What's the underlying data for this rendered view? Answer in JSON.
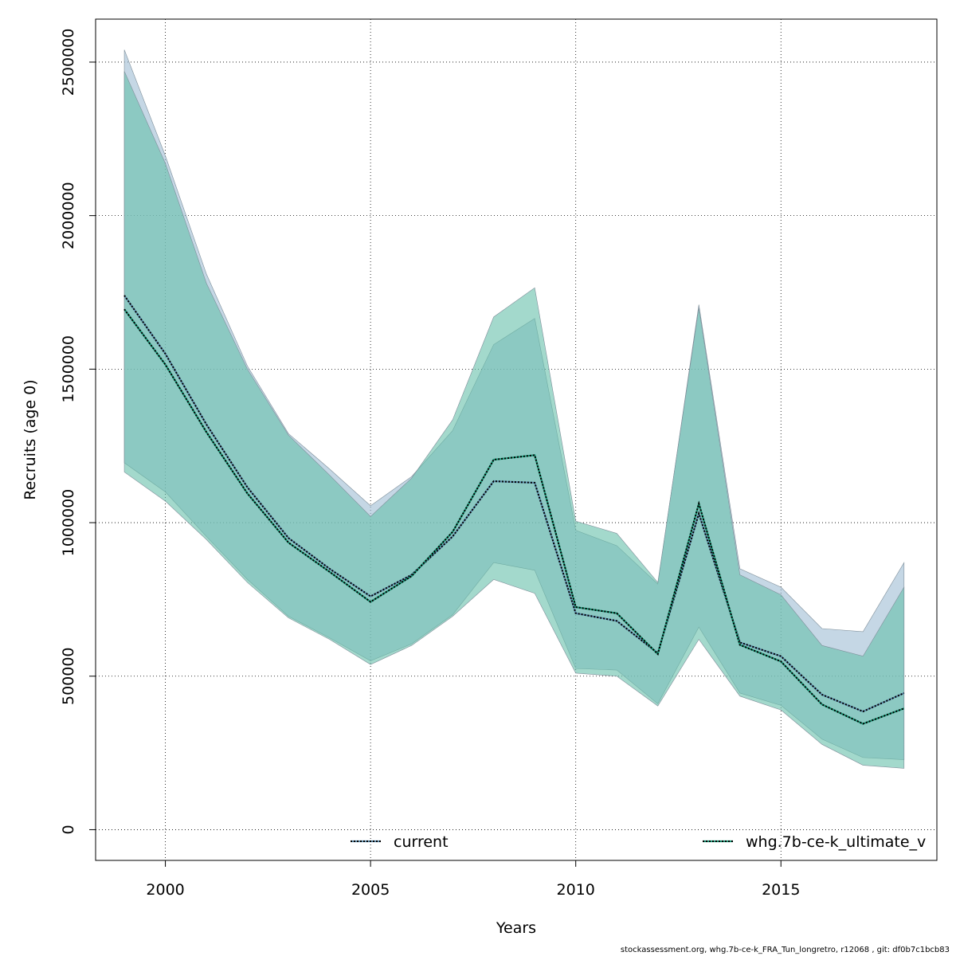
{
  "chart_data": {
    "type": "area",
    "xlabel": "Years",
    "ylabel": "Recruits (age 0)",
    "xlim": [
      1998.3,
      2018.8
    ],
    "ylim": [
      -100000,
      2640000
    ],
    "x_ticks": [
      2000,
      2005,
      2010,
      2015
    ],
    "y_ticks": [
      0,
      500000,
      1000000,
      1500000,
      2000000,
      2500000
    ],
    "grid": true,
    "legend_position": "bottom",
    "x": [
      1999,
      2000,
      2001,
      2002,
      2003,
      2004,
      2005,
      2006,
      2007,
      2008,
      2009,
      2010,
      2011,
      2012,
      2013,
      2014,
      2015,
      2016,
      2017,
      2018
    ],
    "series": [
      {
        "name": "current",
        "color": "#5f8fb0",
        "band_color": "#9fbcd3",
        "line_style": "dotted",
        "values": [
          1740000,
          1550000,
          1320000,
          1115000,
          950000,
          850000,
          760000,
          830000,
          955000,
          1135000,
          1130000,
          705000,
          680000,
          575000,
          1030000,
          610000,
          565000,
          440000,
          385000,
          445000
        ],
        "lower": [
          1195000,
          1100000,
          955000,
          815000,
          695000,
          625000,
          550000,
          605000,
          700000,
          870000,
          845000,
          525000,
          520000,
          410000,
          660000,
          445000,
          405000,
          295000,
          235000,
          228000
        ],
        "upper": [
          2540000,
          2195000,
          1810000,
          1510000,
          1290000,
          1175000,
          1055000,
          1150000,
          1300000,
          1580000,
          1665000,
          975000,
          925000,
          800000,
          1710000,
          850000,
          790000,
          655000,
          645000,
          870000
        ]
      },
      {
        "name": "whg.7b-ce-k_ultimate_v",
        "color": "#1a9978",
        "band_color": "#66bfaa",
        "line_style": "dotted",
        "values": [
          1695000,
          1515000,
          1295000,
          1095000,
          935000,
          840000,
          742000,
          826000,
          970000,
          1205000,
          1220000,
          725000,
          705000,
          572000,
          1062000,
          602000,
          548000,
          408000,
          345000,
          395000
        ],
        "lower": [
          1165000,
          1070000,
          945000,
          805000,
          690000,
          620000,
          538000,
          600000,
          695000,
          815000,
          770000,
          510000,
          500000,
          403000,
          620000,
          435000,
          390000,
          278000,
          210000,
          200000
        ],
        "upper": [
          2470000,
          2170000,
          1780000,
          1500000,
          1285000,
          1155000,
          1020000,
          1145000,
          1335000,
          1670000,
          1765000,
          1005000,
          965000,
          805000,
          1700000,
          830000,
          765000,
          600000,
          565000,
          790000
        ]
      }
    ]
  },
  "footer": "stockassessment.org, whg.7b-ce-k_FRA_Tun_longretro, r12068 , git: df0b7c1bcb83"
}
